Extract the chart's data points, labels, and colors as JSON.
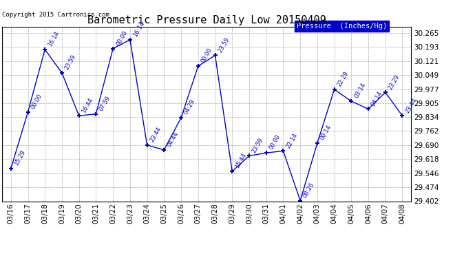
{
  "title": "Barometric Pressure Daily Low 20150409",
  "copyright": "Copyright 2015 Cartronics.com",
  "legend_label": "Pressure  (Inches/Hg)",
  "dates": [
    "03/16",
    "03/17",
    "03/18",
    "03/19",
    "03/20",
    "03/21",
    "03/22",
    "03/23",
    "03/24",
    "03/25",
    "03/26",
    "03/27",
    "03/28",
    "03/29",
    "03/30",
    "03/31",
    "04/01",
    "04/02",
    "04/03",
    "04/04",
    "04/05",
    "04/06",
    "04/07",
    "04/08"
  ],
  "values": [
    29.57,
    29.86,
    30.18,
    30.06,
    29.84,
    29.85,
    30.185,
    30.23,
    29.69,
    29.665,
    29.83,
    30.095,
    30.15,
    29.555,
    29.635,
    29.65,
    29.66,
    29.405,
    29.7,
    29.975,
    29.915,
    29.875,
    29.96,
    29.84
  ],
  "time_labels": [
    "15:29",
    "00:00",
    "16:14",
    "23:59",
    "16:44",
    "07:59",
    "00:00",
    "16:14",
    "23:44",
    "04:44",
    "04:29",
    "00:00",
    "23:59",
    "15:44",
    "23:59",
    "00:00",
    "22:14",
    "08:26",
    "00:14",
    "22:29",
    "03:14",
    "04:14",
    "23:29",
    "23:44"
  ],
  "ylim_min": 29.402,
  "ylim_max": 30.295,
  "yticks": [
    29.402,
    29.474,
    29.546,
    29.618,
    29.69,
    29.762,
    29.834,
    29.905,
    29.977,
    30.049,
    30.121,
    30.193,
    30.265
  ],
  "line_color": "#0000cc",
  "marker_color": "#0000cc",
  "bg_color": "#ffffff",
  "grid_color": "#aaaaaa",
  "title_color": "#000000",
  "legend_bg": "#0000cc",
  "legend_text": "#ffffff"
}
